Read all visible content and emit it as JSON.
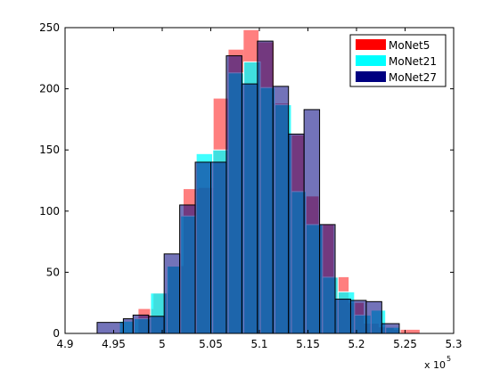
{
  "chart_data": {
    "type": "bar",
    "title": "",
    "xlabel": "",
    "ylabel": "",
    "xlim": [
      4.9,
      5.3
    ],
    "ylim": [
      0,
      250
    ],
    "x_exponent_label": "x 10",
    "x_exponent_power": "5",
    "xticks": [
      {
        "value": 4.9,
        "label": "4.9"
      },
      {
        "value": 4.95,
        "label": "4.95"
      },
      {
        "value": 5.0,
        "label": "5"
      },
      {
        "value": 5.05,
        "label": "5.05"
      },
      {
        "value": 5.1,
        "label": "5.1"
      },
      {
        "value": 5.15,
        "label": "5.15"
      },
      {
        "value": 5.2,
        "label": "5.2"
      },
      {
        "value": 5.25,
        "label": "5.25"
      },
      {
        "value": 5.3,
        "label": "5.3"
      }
    ],
    "yticks": [
      {
        "value": 0,
        "label": "0"
      },
      {
        "value": 50,
        "label": "50"
      },
      {
        "value": 100,
        "label": "100"
      },
      {
        "value": 150,
        "label": "150"
      },
      {
        "value": 200,
        "label": "200"
      },
      {
        "value": 250,
        "label": "250"
      }
    ],
    "grid": false,
    "legend_position": "top-right",
    "series": [
      {
        "name": "MoNet5",
        "color": "#ff0000",
        "edge": "none",
        "opacity": 0.5,
        "bins": [
          [
            4.9756,
            4.991,
            20
          ],
          [
            4.991,
            5.0065,
            33
          ],
          [
            5.0065,
            5.022,
            55
          ],
          [
            5.022,
            5.0374,
            118
          ],
          [
            5.0374,
            5.0529,
            119
          ],
          [
            5.0529,
            5.0683,
            192
          ],
          [
            5.0683,
            5.0838,
            232
          ],
          [
            5.0838,
            5.0992,
            248
          ],
          [
            5.0992,
            5.1147,
            238
          ],
          [
            5.1147,
            5.1301,
            188
          ],
          [
            5.1301,
            5.1456,
            162
          ],
          [
            5.1456,
            5.161,
            112
          ],
          [
            5.161,
            5.1765,
            89
          ],
          [
            5.1765,
            5.1919,
            46
          ],
          [
            5.1919,
            5.2074,
            25
          ],
          [
            5.2074,
            5.2228,
            8
          ],
          [
            5.2228,
            5.2383,
            5
          ],
          [
            5.2383,
            5.265,
            3
          ]
        ]
      },
      {
        "name": "MoNet21",
        "color": "#00ffff",
        "edge": "#ffffff",
        "opacity": 0.75,
        "bins": [
          [
            4.956,
            4.971,
            10
          ],
          [
            4.971,
            4.988,
            12
          ],
          [
            4.988,
            5.005,
            33
          ],
          [
            5.005,
            5.019,
            55
          ],
          [
            5.019,
            5.035,
            96
          ],
          [
            5.035,
            5.052,
            147
          ],
          [
            5.052,
            5.068,
            150
          ],
          [
            5.068,
            5.084,
            213
          ],
          [
            5.084,
            5.101,
            222
          ],
          [
            5.101,
            5.116,
            201
          ],
          [
            5.116,
            5.133,
            187
          ],
          [
            5.133,
            5.148,
            116
          ],
          [
            5.148,
            5.165,
            89
          ],
          [
            5.165,
            5.181,
            46
          ],
          [
            5.181,
            5.198,
            34
          ],
          [
            5.198,
            5.215,
            15
          ],
          [
            5.215,
            5.23,
            19
          ],
          [
            5.23,
            5.245,
            5
          ]
        ]
      },
      {
        "name": "MoNet27",
        "color": "#000080",
        "edge": "#000000",
        "opacity": 0.55,
        "bins": [
          [
            4.933,
            4.96,
            9
          ],
          [
            4.96,
            4.97,
            12
          ],
          [
            4.97,
            4.986,
            15
          ],
          [
            4.986,
            5.002,
            14
          ],
          [
            5.002,
            5.018,
            65
          ],
          [
            5.018,
            5.034,
            105
          ],
          [
            5.034,
            5.05,
            140
          ],
          [
            5.05,
            5.066,
            140
          ],
          [
            5.066,
            5.082,
            227
          ],
          [
            5.082,
            5.098,
            204
          ],
          [
            5.098,
            5.114,
            239
          ],
          [
            5.114,
            5.13,
            202
          ],
          [
            5.13,
            5.146,
            163
          ],
          [
            5.146,
            5.162,
            183
          ],
          [
            5.162,
            5.178,
            89
          ],
          [
            5.178,
            5.194,
            28
          ],
          [
            5.194,
            5.21,
            27
          ],
          [
            5.21,
            5.226,
            26
          ],
          [
            5.226,
            5.244,
            8
          ]
        ]
      }
    ]
  }
}
